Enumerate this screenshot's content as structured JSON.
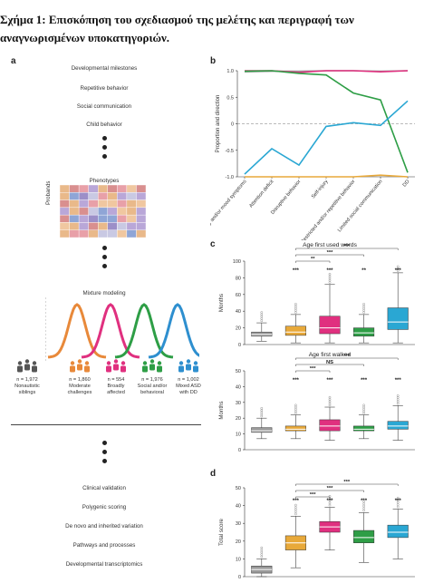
{
  "caption": {
    "line1": "Σχήμα 1: Επισκόπηση του σχεδιασμού της μελέτης και περιγραφή των",
    "line2": "αναγνωρισμένων υποκατηγοριών."
  },
  "panel_a": {
    "letter": "a",
    "features": [
      "Developmental milestones",
      "Repetitive behavior",
      "Social communication",
      "Child behavior"
    ],
    "phenotypes_title": "Phenotypes",
    "probands_label": "Probands",
    "mixture_title": "Mixture modeling",
    "groups": [
      {
        "n": "n = 1,972",
        "name1": "Nonautistic",
        "name2": "siblings",
        "color": "#555555"
      },
      {
        "n": "n = 1,860",
        "name1": "Moderate",
        "name2": "challenges",
        "color": "#E8893A"
      },
      {
        "n": "n = 554",
        "name1": "Broadly",
        "name2": "affected",
        "color": "#E0307F"
      },
      {
        "n": "n = 1,976",
        "name1": "Social and/or",
        "name2": "behavioral",
        "color": "#2E9E46"
      },
      {
        "n": "n = 1,002",
        "name1": "Mixed ASD",
        "name2": "with DD",
        "color": "#2E8FCF"
      }
    ],
    "analyses": [
      "Clinical validation",
      "Polygenic scoring",
      "De novo and inherited variation",
      "Pathways and processes",
      "Developmental transcriptomics"
    ]
  },
  "chart_data": [
    {
      "id": "b",
      "type": "line",
      "ylabel": "Proportion and direction",
      "categories": [
        "Anxiety and/or mood symptoms",
        "Attention deficit",
        "Disruptive behavior",
        "Self-injury",
        "Restricted and/or repetitive behavior",
        "Limited social communication",
        "DD"
      ],
      "ylim": [
        -1.0,
        1.0
      ],
      "yticks": [
        "-1.0",
        "-0.5",
        "0",
        "0.5",
        "1.0"
      ],
      "series": [
        {
          "color": "#9a9a9a",
          "values": [
            0.98,
            0.99,
            0.99,
            1.0,
            1.0,
            0.99,
            1.0
          ]
        },
        {
          "color": "#E0307F",
          "values": [
            1.0,
            1.0,
            0.97,
            1.0,
            1.0,
            0.98,
            1.0
          ]
        },
        {
          "color": "#2E9E46",
          "values": [
            0.99,
            1.0,
            0.95,
            0.92,
            0.58,
            0.45,
            -0.92
          ]
        },
        {
          "color": "#2AA7D3",
          "values": [
            -0.95,
            -0.47,
            -0.78,
            -0.05,
            0.02,
            -0.03,
            0.43
          ]
        },
        {
          "color": "#E8A93A",
          "values": [
            -1.0,
            -1.0,
            -1.0,
            -1.0,
            -1.0,
            -0.97,
            -1.0
          ]
        }
      ]
    },
    {
      "id": "c1",
      "type": "box",
      "title": "Age first used words",
      "ylabel": "Months",
      "ylim": [
        0,
        100
      ],
      "yticks": [
        "0",
        "20",
        "40",
        "60",
        "80",
        "100"
      ],
      "boxes": [
        {
          "color": "#9a9a9a",
          "whisker": [
            4,
            26
          ],
          "q1": 10,
          "med": 12,
          "q3": 15,
          "stars": ""
        },
        {
          "color": "#E8A93A",
          "whisker": [
            2,
            36
          ],
          "q1": 11,
          "med": 15,
          "q3": 22,
          "stars": "***"
        },
        {
          "color": "#E0307F",
          "whisker": [
            2,
            72
          ],
          "q1": 13,
          "med": 20,
          "q3": 34,
          "stars": "***"
        },
        {
          "color": "#2E9E46",
          "whisker": [
            2,
            36
          ],
          "q1": 10,
          "med": 14,
          "q3": 20,
          "stars": "**"
        },
        {
          "color": "#2AA7D3",
          "whisker": [
            2,
            86
          ],
          "q1": 18,
          "med": 27,
          "q3": 44,
          "stars": "***"
        }
      ],
      "brackets": [
        {
          "from": 1,
          "to": 2,
          "label": "**"
        },
        {
          "from": 1,
          "to": 3,
          "label": "***"
        },
        {
          "from": 1,
          "to": 4,
          "label": "***"
        }
      ]
    },
    {
      "id": "c2",
      "type": "box",
      "title": "Age first walked",
      "ylabel": "Months",
      "ylim": [
        0,
        50
      ],
      "yticks": [
        "0",
        "10",
        "20",
        "30",
        "40",
        "50"
      ],
      "boxes": [
        {
          "color": "#9a9a9a",
          "whisker": [
            7,
            20
          ],
          "q1": 11,
          "med": 12,
          "q3": 14,
          "stars": ""
        },
        {
          "color": "#E8A93A",
          "whisker": [
            7,
            22
          ],
          "q1": 12,
          "med": 13,
          "q3": 15,
          "stars": "***"
        },
        {
          "color": "#E0307F",
          "whisker": [
            6,
            27
          ],
          "q1": 12,
          "med": 15,
          "q3": 19,
          "stars": "***"
        },
        {
          "color": "#2E9E46",
          "whisker": [
            7,
            22
          ],
          "q1": 12,
          "med": 13,
          "q3": 15,
          "stars": "***"
        },
        {
          "color": "#2AA7D3",
          "whisker": [
            6,
            28
          ],
          "q1": 13,
          "med": 15,
          "q3": 18,
          "stars": "***"
        }
      ],
      "brackets": [
        {
          "from": 1,
          "to": 2,
          "label": "***"
        },
        {
          "from": 1,
          "to": 3,
          "label": "NS"
        },
        {
          "from": 1,
          "to": 4,
          "label": "***"
        }
      ]
    },
    {
      "id": "d",
      "type": "box",
      "ylabel": "Total score",
      "ylim": [
        0,
        50
      ],
      "yticks": [
        "0",
        "10",
        "20",
        "30",
        "40",
        "50"
      ],
      "boxes": [
        {
          "color": "#9a9a9a",
          "whisker": [
            0,
            10
          ],
          "q1": 2,
          "med": 4,
          "q3": 6,
          "stars": ""
        },
        {
          "color": "#E8A93A",
          "whisker": [
            5,
            34
          ],
          "q1": 15,
          "med": 19,
          "q3": 23,
          "stars": "***"
        },
        {
          "color": "#E0307F",
          "whisker": [
            15,
            39
          ],
          "q1": 25,
          "med": 28,
          "q3": 31,
          "stars": "***"
        },
        {
          "color": "#2E9E46",
          "whisker": [
            8,
            36
          ],
          "q1": 19,
          "med": 22,
          "q3": 26,
          "stars": "***"
        },
        {
          "color": "#2AA7D3",
          "whisker": [
            10,
            38
          ],
          "q1": 22,
          "med": 25,
          "q3": 29,
          "stars": "***"
        }
      ],
      "brackets": [
        {
          "from": 1,
          "to": 2,
          "label": "***"
        },
        {
          "from": 1,
          "to": 3,
          "label": "***"
        },
        {
          "from": 1,
          "to": 4,
          "label": "***"
        }
      ]
    }
  ],
  "panel_labels": {
    "b": "b",
    "c": "c",
    "d": "d"
  }
}
